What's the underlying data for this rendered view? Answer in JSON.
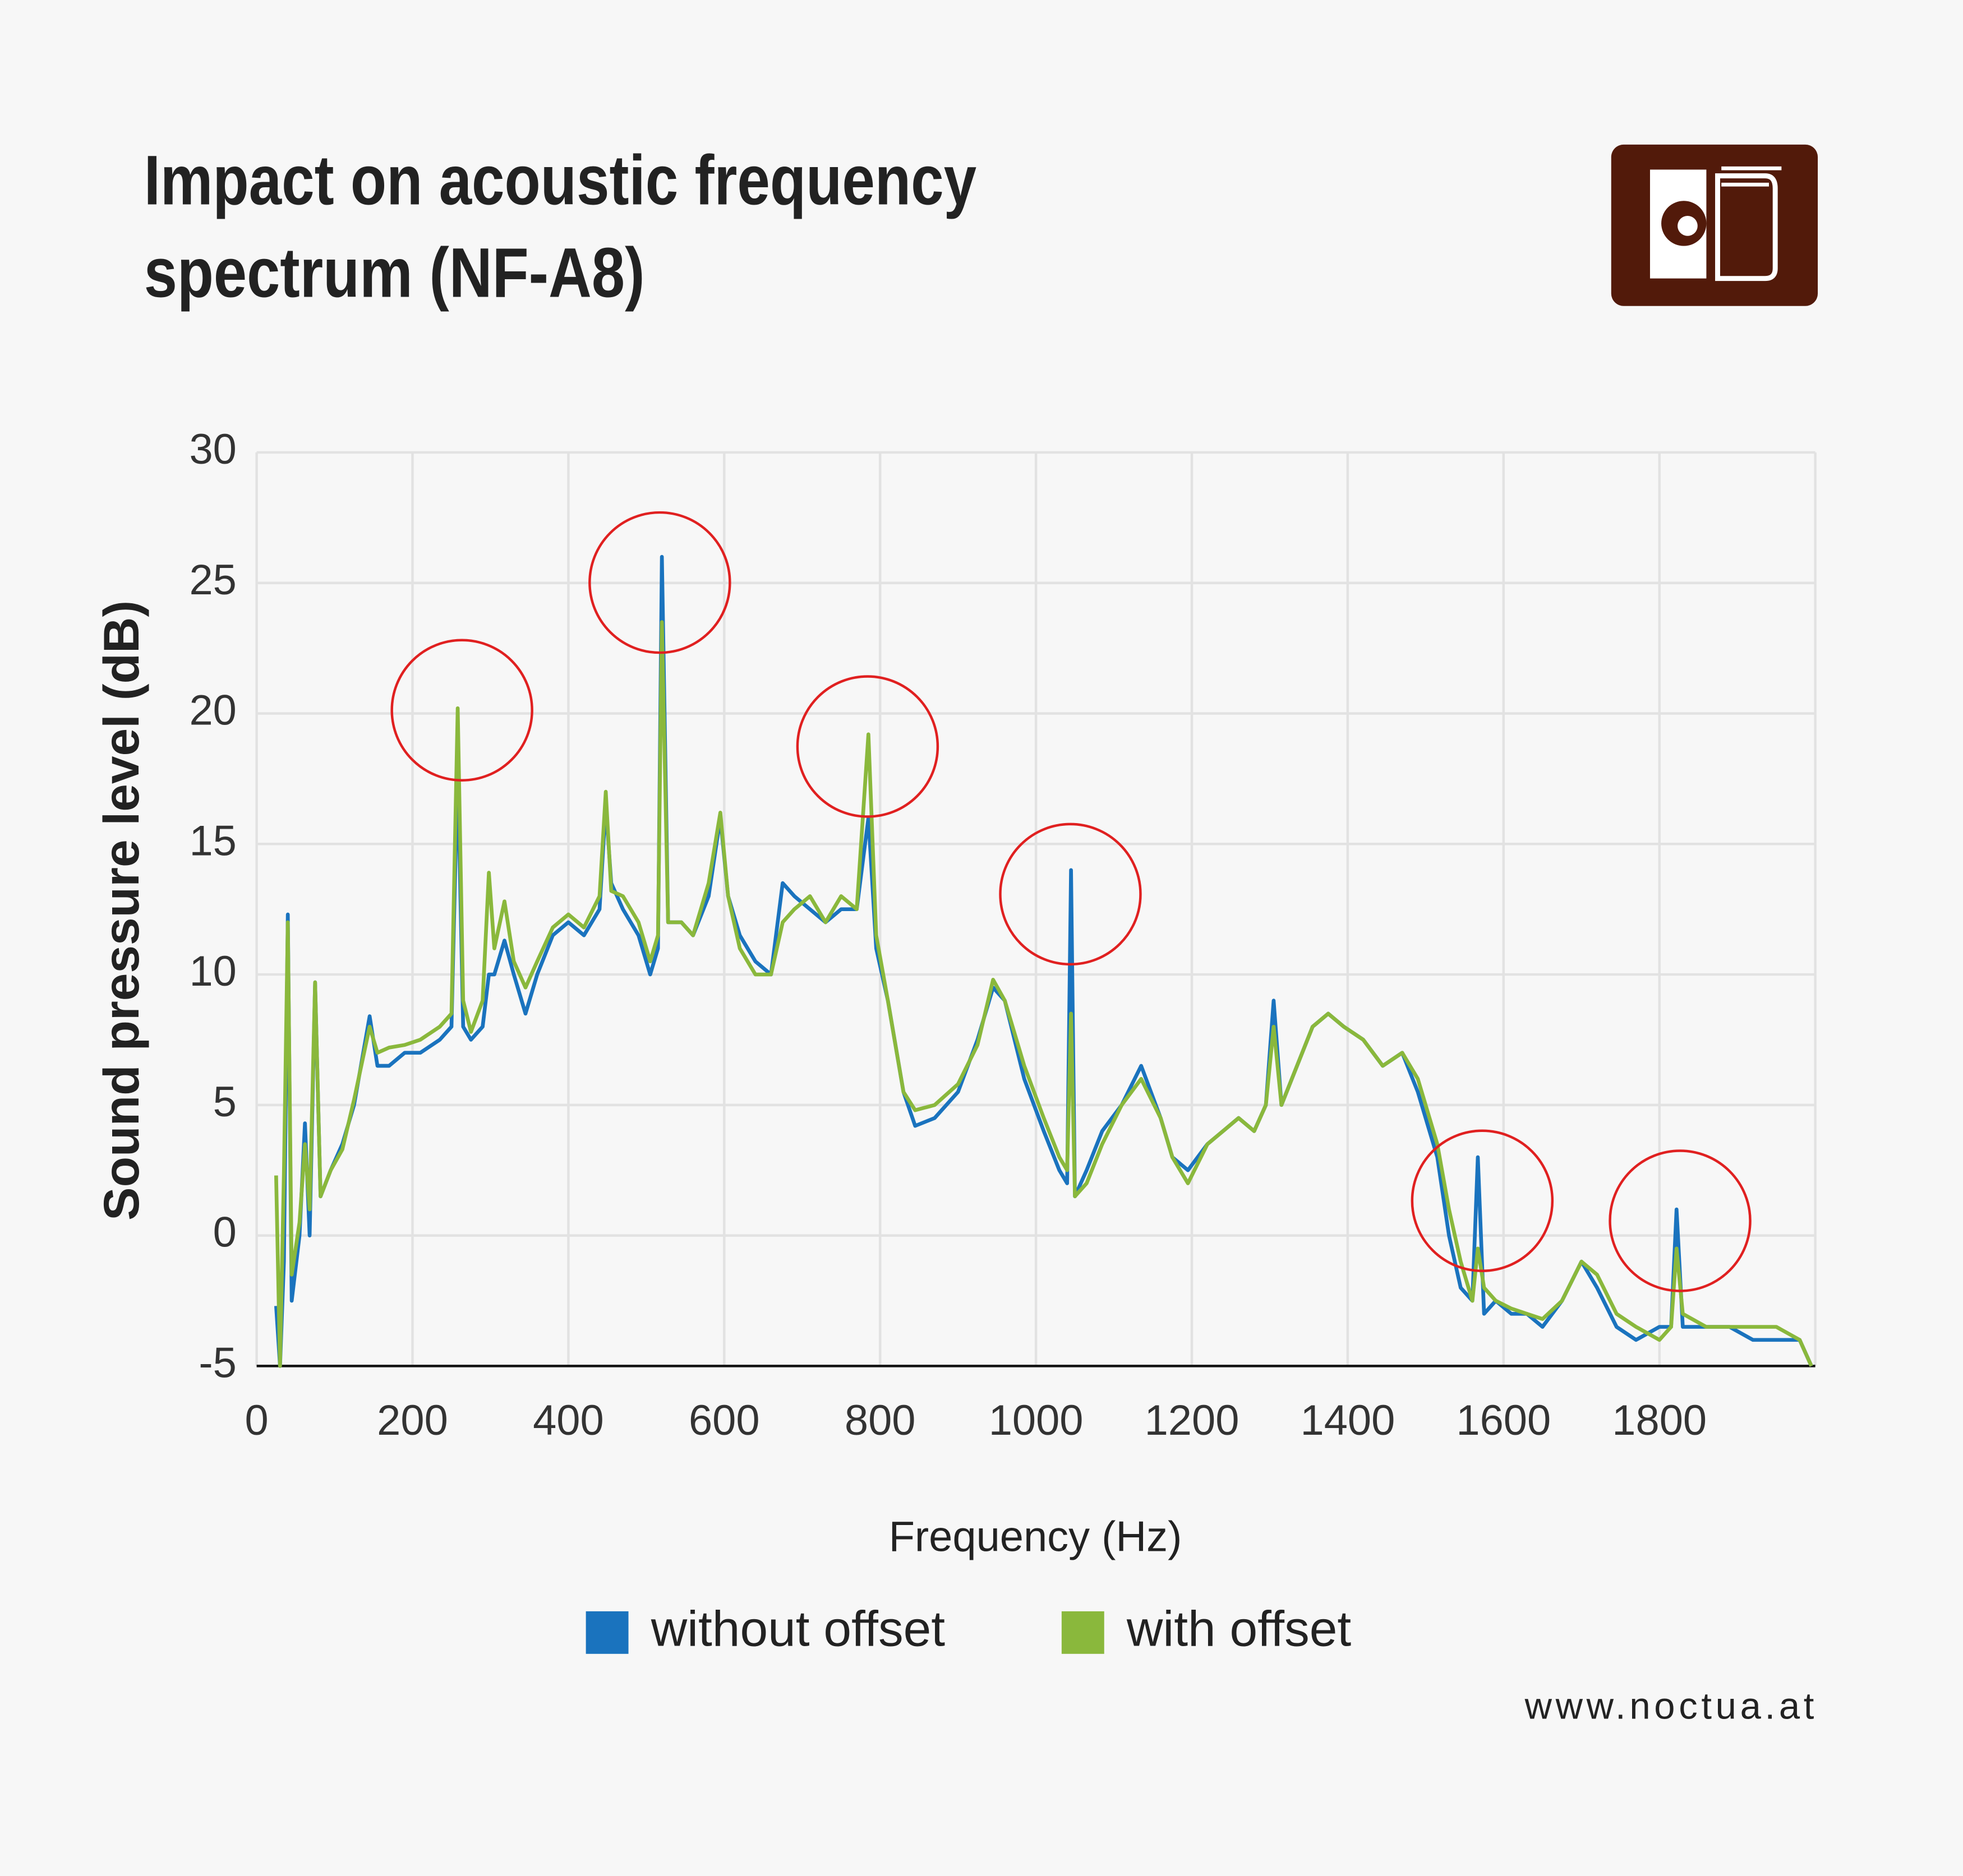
{
  "chart_data": {
    "type": "line",
    "title": [
      "Impact on acoustic frequency",
      "spectrum (NF-A8)"
    ],
    "x_label": "Frequency (Hz)",
    "y_label": "Sound pressure level (dB)",
    "source": "www.noctua.at",
    "xlim": [
      0,
      2000
    ],
    "xticks": [
      0,
      200,
      400,
      600,
      800,
      1000,
      1200,
      1400,
      1600,
      1800
    ],
    "ylim": [
      -5,
      30
    ],
    "yticks": [
      -5,
      0,
      5,
      10,
      15,
      20,
      25,
      30
    ],
    "grid": true,
    "legend": "bottom",
    "x": [
      25,
      30,
      35,
      40,
      45,
      55,
      62,
      68,
      75,
      82,
      95,
      110,
      125,
      145,
      155,
      170,
      190,
      210,
      235,
      250,
      258,
      265,
      275,
      290,
      298,
      305,
      318,
      330,
      345,
      360,
      380,
      400,
      420,
      440,
      448,
      455,
      470,
      490,
      505,
      515,
      520,
      528,
      545,
      560,
      580,
      595,
      605,
      620,
      640,
      660,
      675,
      690,
      710,
      730,
      750,
      770,
      785,
      795,
      810,
      830,
      845,
      870,
      900,
      925,
      945,
      960,
      985,
      1010,
      1030,
      1040,
      1045,
      1050,
      1065,
      1085,
      1110,
      1135,
      1160,
      1175,
      1195,
      1220,
      1240,
      1260,
      1280,
      1295,
      1305,
      1315,
      1335,
      1355,
      1375,
      1395,
      1420,
      1445,
      1470,
      1490,
      1515,
      1530,
      1545,
      1560,
      1567,
      1575,
      1590,
      1610,
      1630,
      1650,
      1675,
      1700,
      1720,
      1745,
      1770,
      1800,
      1815,
      1822,
      1830,
      1860,
      1890,
      1920,
      1950,
      1980,
      1995
    ],
    "series": [
      {
        "name": "without offset",
        "color": "#1a73be",
        "values": [
          -2.7,
          -5,
          -1,
          12.3,
          -2.5,
          0,
          4.3,
          0,
          9.7,
          1.5,
          2.5,
          3.5,
          5,
          8.4,
          6.5,
          6.5,
          7,
          7,
          7.5,
          8,
          18,
          8,
          7.5,
          8,
          10,
          10,
          11.3,
          10,
          8.5,
          10,
          11.5,
          12,
          11.5,
          12.5,
          16.5,
          13.5,
          12.5,
          11.5,
          10,
          11,
          26,
          12,
          12,
          11.5,
          13,
          16,
          13,
          11.5,
          10.5,
          10,
          13.5,
          13,
          12.5,
          12,
          12.5,
          12.5,
          16,
          11,
          9,
          5.5,
          4.2,
          4.5,
          5.5,
          7.5,
          9.5,
          9,
          6,
          4,
          2.5,
          2,
          14,
          1.5,
          2.5,
          4,
          5,
          6.5,
          4.5,
          3,
          2.5,
          3.5,
          4,
          4.5,
          4,
          5,
          9,
          5,
          6.5,
          8,
          8.5,
          8,
          7.5,
          6.5,
          7,
          5.5,
          3,
          0,
          -2,
          -2.5,
          3,
          -3,
          -2.5,
          -3,
          -3,
          -3.5,
          -2.5,
          -1,
          -2,
          -3.5,
          -4,
          -3.5,
          -3.5,
          1,
          -3.5,
          -3.5,
          -3.5,
          -4,
          -4,
          -4,
          -5
        ]
      },
      {
        "name": "with offset",
        "color": "#8ab83c",
        "values": [
          2.3,
          -5,
          2.4,
          12,
          -1.5,
          0.5,
          3.5,
          1,
          9.7,
          1.5,
          2.5,
          3.3,
          5.2,
          8,
          7,
          7.2,
          7.3,
          7.5,
          8,
          8.5,
          20.2,
          9,
          7.8,
          9,
          13.9,
          11,
          12.8,
          10.5,
          9.5,
          10.5,
          11.8,
          12.3,
          11.8,
          13,
          17,
          13.2,
          13,
          12,
          10.5,
          11.5,
          23.5,
          12,
          12,
          11.5,
          13.5,
          16.2,
          13,
          11,
          10,
          10,
          12,
          12.5,
          13,
          12,
          13,
          12.5,
          19.2,
          11.5,
          9,
          5.5,
          4.8,
          5,
          5.8,
          7.3,
          9.8,
          9,
          6.5,
          4.5,
          3,
          2.5,
          8.5,
          1.5,
          2,
          3.5,
          5,
          6,
          4.5,
          3,
          2,
          3.5,
          4,
          4.5,
          4,
          5,
          8,
          5,
          6.5,
          8,
          8.5,
          8,
          7.5,
          6.5,
          7,
          6,
          3.5,
          1,
          -1,
          -2.5,
          -0.5,
          -2,
          -2.5,
          -2.8,
          -3,
          -3.2,
          -2.5,
          -1,
          -1.5,
          -3,
          -3.5,
          -4,
          -3.5,
          -0.5,
          -3,
          -3.5,
          -3.5,
          -3.5,
          -3.5,
          -4,
          -5
        ]
      }
    ]
  }
}
